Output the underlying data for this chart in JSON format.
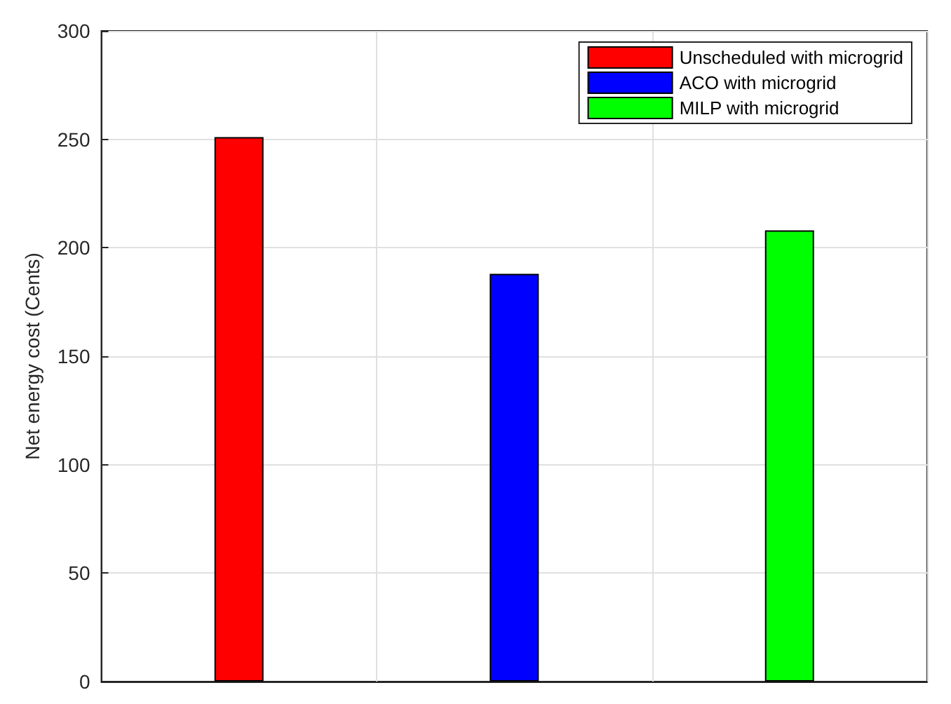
{
  "chart_data": {
    "type": "bar",
    "ylabel": "Net energy cost (Cents)",
    "categories": [
      null,
      null,
      null
    ],
    "series": [
      {
        "name": "Unscheduled with microgrid",
        "color": "#ff0000",
        "values": [
          251,
          null,
          null
        ]
      },
      {
        "name": "ACO with microgrid",
        "color": "#0000ff",
        "values": [
          null,
          188,
          null
        ]
      },
      {
        "name": "MILP with microgrid",
        "color": "#00ff00",
        "values": [
          null,
          null,
          208
        ]
      }
    ],
    "ylim": [
      0,
      300
    ],
    "yticks": [
      0,
      50,
      100,
      150,
      200,
      250,
      300
    ],
    "grid": true,
    "legend": "top right"
  }
}
